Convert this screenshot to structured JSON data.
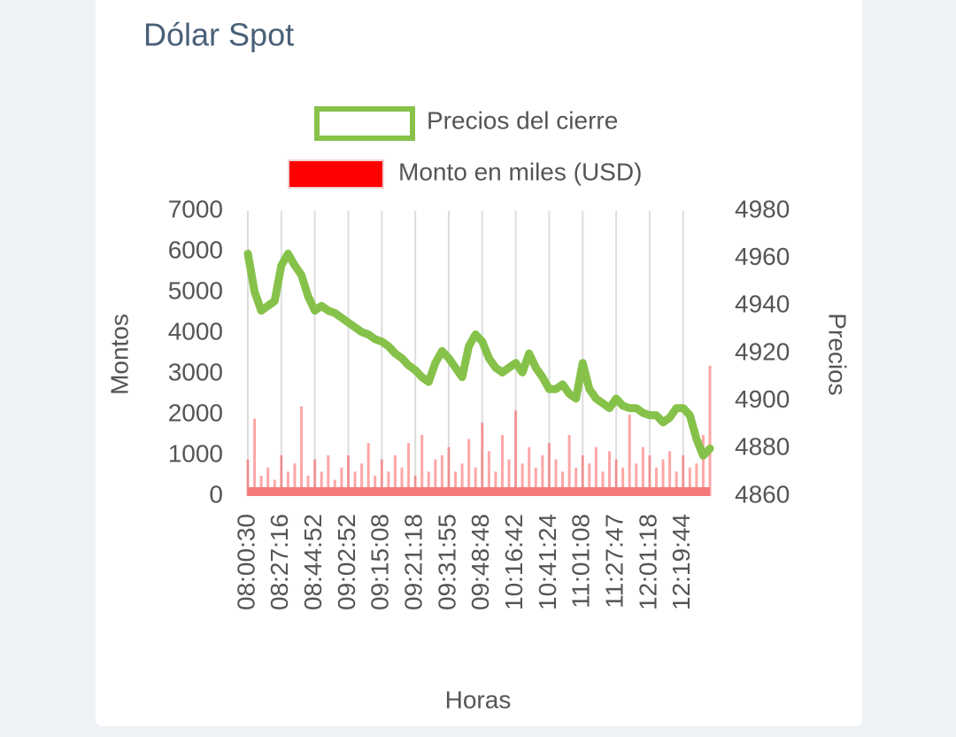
{
  "chart_data": {
    "type": "bar-line",
    "title": "Dólar Spot",
    "x_label": "Horas",
    "y_label": "Montos",
    "y2_label": "Precios",
    "categories": [
      "08:00:30",
      null,
      null,
      null,
      null,
      "08:27:16",
      null,
      null,
      null,
      null,
      "08:44:52",
      null,
      null,
      null,
      null,
      "09:02:52",
      null,
      null,
      null,
      null,
      "09:15:08",
      null,
      null,
      null,
      null,
      "09:21:18",
      null,
      null,
      null,
      null,
      "09:31:55",
      null,
      null,
      null,
      null,
      "09:48:48",
      null,
      null,
      null,
      null,
      "10:16:42",
      null,
      null,
      null,
      null,
      "10:41:24",
      null,
      null,
      null,
      null,
      "11:01:08",
      null,
      null,
      null,
      null,
      "11:27:47",
      null,
      null,
      null,
      null,
      "12:01:18",
      null,
      null,
      null,
      null,
      "12:19:44",
      null,
      null,
      null,
      null
    ],
    "series": [
      {
        "name": "Precios del cierre",
        "type": "line",
        "axis": "y2",
        "color": "#86c24a",
        "values": [
          4962,
          4946,
          4938,
          4940,
          4942,
          4957,
          4962,
          4957,
          4953,
          4944,
          4938,
          4940,
          4938,
          4937,
          4935,
          4933,
          4931,
          4929,
          4928,
          4926,
          4925,
          4923,
          4920,
          4918,
          4915,
          4913,
          4910,
          4908,
          4916,
          4921,
          4918,
          4914,
          4910,
          4923,
          4928,
          4925,
          4918,
          4914,
          4912,
          4914,
          4916,
          4912,
          4920,
          4914,
          4910,
          4905,
          4905,
          4907,
          4903,
          4901,
          4916,
          4905,
          4901,
          4899,
          4897,
          4901,
          4898,
          4897,
          4897,
          4895,
          4894,
          4894,
          4891,
          4893,
          4897,
          4897,
          4894,
          4884,
          4877,
          4880
        ]
      },
      {
        "name": "Monto en miles (USD)",
        "type": "bar",
        "axis": "y",
        "color": "#ff0000",
        "values": [
          900,
          1900,
          500,
          700,
          400,
          1000,
          600,
          800,
          2200,
          500,
          900,
          600,
          1000,
          400,
          700,
          1000,
          600,
          800,
          1300,
          500,
          900,
          600,
          1000,
          700,
          1300,
          500,
          1500,
          600,
          900,
          1000,
          1200,
          600,
          800,
          1400,
          700,
          1800,
          1100,
          600,
          1500,
          900,
          2100,
          800,
          1200,
          700,
          1000,
          1300,
          900,
          600,
          1500,
          700,
          1000,
          800,
          1200,
          600,
          1100,
          900,
          700,
          2000,
          800,
          1200,
          1000,
          700,
          900,
          1100,
          600,
          1000,
          700,
          800,
          1500,
          3200
        ]
      }
    ],
    "ylim": [
      0,
      7000
    ],
    "yticks": [
      0,
      1000,
      2000,
      3000,
      4000,
      5000,
      6000,
      7000
    ],
    "y2lim": [
      4860,
      4980
    ],
    "y2ticks": [
      4860,
      4880,
      4900,
      4920,
      4940,
      4960,
      4980
    ],
    "x_grid": true,
    "legend": "top"
  }
}
